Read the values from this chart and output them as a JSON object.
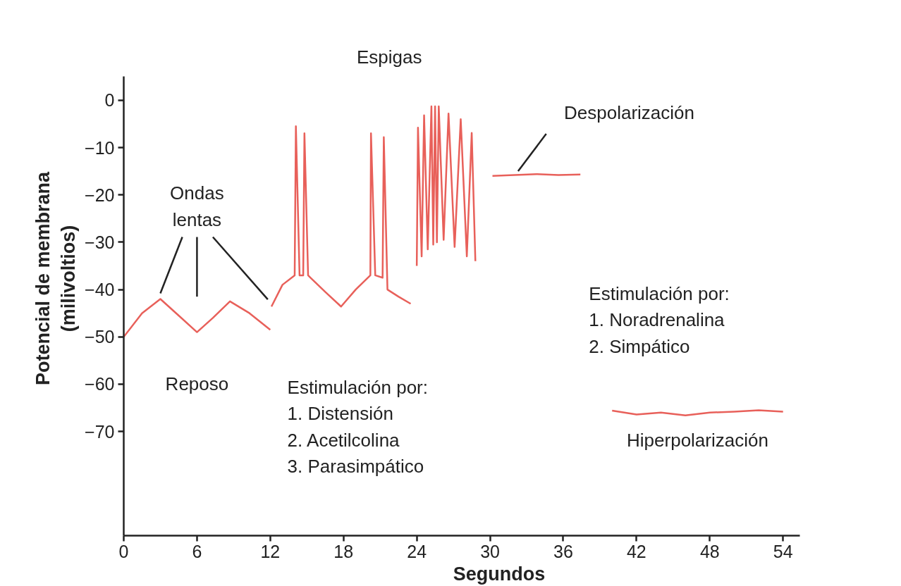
{
  "chart_data": {
    "type": "line",
    "xlabel": "Segundos",
    "ylabel": "Potencial de membrana\n(milivoltios)",
    "xlim": [
      0,
      55.4
    ],
    "ylim": [
      -92,
      5
    ],
    "xticks": [
      0,
      6,
      12,
      18,
      24,
      30,
      36,
      42,
      48,
      54
    ],
    "yticks": [
      0,
      -10,
      -20,
      -30,
      -40,
      -50,
      -60,
      -70
    ],
    "grid": false,
    "line_style": "solid",
    "marker": "none",
    "series": [
      {
        "color": "#e8605a",
        "x": [
          0,
          1.5,
          3,
          4.5,
          6,
          7.3,
          8.7,
          10.3,
          12
        ],
        "values": [
          -50,
          -45,
          -42,
          -45.5,
          -49,
          -46,
          -42.5,
          -45,
          -48.5
        ]
      },
      {
        "color": "#e8605a",
        "x": [
          12.1,
          13,
          14,
          14.1,
          14.4,
          14.7,
          14.8,
          15.1,
          15.3,
          16.5,
          17.8,
          19,
          20.2,
          20.25,
          20.6,
          21.2,
          21.3,
          21.6,
          22.5,
          23.5
        ],
        "values": [
          -43.6,
          -39,
          -37,
          -5.5,
          -37,
          -37,
          -7,
          -37,
          -37.5,
          -40.5,
          -43.6,
          -40,
          -37,
          -7,
          -37,
          -37.5,
          -7.8,
          -40,
          -41.5,
          -43
        ]
      },
      {
        "color": "#e8605a",
        "x": [
          24.0,
          24.1,
          24.4,
          24.6,
          24.9,
          25.2,
          25.35,
          25.5,
          25.65,
          25.8,
          26.2,
          26.6,
          27.1,
          27.6,
          28.1,
          28.5,
          28.8
        ],
        "values": [
          -35,
          -5.8,
          -33,
          -3.2,
          -31.5,
          -1.3,
          -30.5,
          -1.3,
          -30,
          -1.3,
          -29.5,
          -2.8,
          -31,
          -4,
          -33,
          -6.9,
          -34
        ]
      },
      {
        "color": "#e8605a",
        "x": [
          30.2,
          32,
          33.8,
          35.6,
          37.4
        ],
        "values": [
          -16,
          -15.8,
          -15.6,
          -15.8,
          -15.7
        ]
      },
      {
        "color": "#e8605a",
        "x": [
          40,
          42,
          44,
          46,
          48,
          50,
          52,
          54
        ],
        "values": [
          -65.6,
          -66.4,
          -66,
          -66.6,
          -66,
          -65.8,
          -65.5,
          -65.8
        ]
      }
    ],
    "annotations": [
      "Ondas\nlentas",
      "Reposo",
      "Espigas",
      "Despolarización",
      "Estimulación por:\n1. Distensión\n2. Acetilcolina\n3. Parasimpático",
      "Estimulación por:\n1. Noradrenalina\n2. Simpático",
      "Hiperpolarización"
    ]
  }
}
